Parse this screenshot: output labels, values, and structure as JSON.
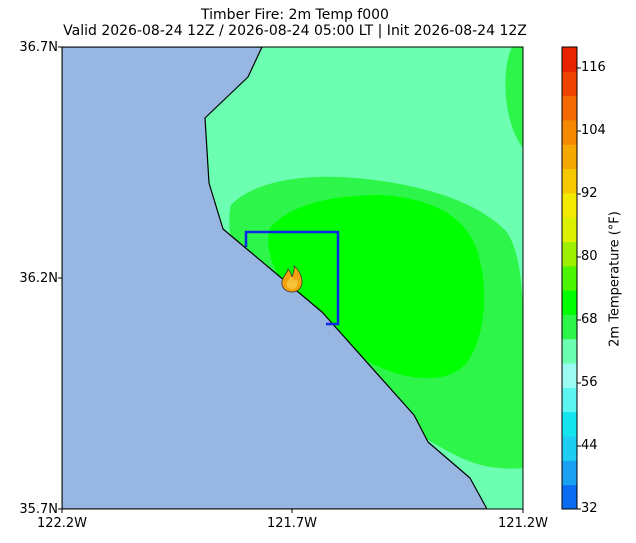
{
  "title": "Timber Fire: 2m Temp f000",
  "subtitle": "Valid 2026-08-24 12Z / 2026-08-24 05:00 LT | Init 2026-08-24 12Z",
  "map": {
    "lat_labels": [
      "36.7N",
      "36.2N",
      "35.7N"
    ],
    "lon_labels": [
      "122.2W",
      "121.7W",
      "121.2W"
    ],
    "extent": {
      "lon_min": -122.2,
      "lon_max": -121.2,
      "lat_min": 35.7,
      "lat_max": 36.7
    },
    "ocean_color": "#97b6e2",
    "fill_colors": {
      "56-62F": "#6cffb1",
      "62-68F": "#2ef54a",
      "68-74F": "#00ff00"
    },
    "marker": "fire-icon",
    "box_color": "#0b28e8"
  },
  "colorbar": {
    "label": "2m Temperature (°F)",
    "ticks": [
      "32",
      "44",
      "56",
      "68",
      "80",
      "92",
      "104",
      "116"
    ],
    "range": [
      32,
      120
    ],
    "colors": [
      "#0a6cf0",
      "#1aa0f0",
      "#1ecdf2",
      "#14e6f0",
      "#5cf5f0",
      "#9cfaf2",
      "#6cffb1",
      "#2ef54a",
      "#00ff00",
      "#4cf500",
      "#9ff000",
      "#dcf000",
      "#f2ea00",
      "#f5c800",
      "#f5a800",
      "#f58a00",
      "#f56a00",
      "#ee4400",
      "#e82400"
    ]
  }
}
